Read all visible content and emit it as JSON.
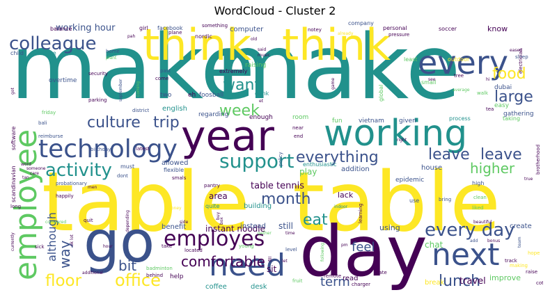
{
  "chart_data": {
    "type": "wordcloud",
    "title": "WordCloud - Cluster 2",
    "palette": [
      "#440154",
      "#3b528b",
      "#21918c",
      "#5ec962",
      "#fde725"
    ],
    "words": [
      {
        "text": "make",
        "size": 1.0,
        "color": "#21918c"
      },
      {
        "text": "make",
        "size": 1.0,
        "color": "#21918c"
      },
      {
        "text": "table",
        "size": 0.95,
        "color": "#fde725"
      },
      {
        "text": "table",
        "size": 0.95,
        "color": "#fde725"
      },
      {
        "text": "day",
        "size": 0.9,
        "color": "#440154"
      },
      {
        "text": "go",
        "size": 0.8,
        "color": "#3b528b"
      },
      {
        "text": "think",
        "size": 0.6,
        "color": "#fde725"
      },
      {
        "text": "think",
        "size": 0.6,
        "color": "#fde725"
      },
      {
        "text": "year",
        "size": 0.6,
        "color": "#440154"
      },
      {
        "text": "working",
        "size": 0.55,
        "color": "#21918c"
      },
      {
        "text": "every",
        "size": 0.5,
        "color": "#3b528b"
      },
      {
        "text": "employee",
        "size": 0.45,
        "color": "#5ec962"
      },
      {
        "text": "need",
        "size": 0.45,
        "color": "#3b528b"
      },
      {
        "text": "next",
        "size": 0.45,
        "color": "#3b528b"
      },
      {
        "text": "technology",
        "size": 0.4,
        "color": "#3b528b"
      },
      {
        "text": "employes",
        "size": 0.35,
        "color": "#440154"
      },
      {
        "text": "colleague",
        "size": 0.33,
        "color": "#3b528b"
      },
      {
        "text": "activity",
        "size": 0.3,
        "color": "#21918c"
      },
      {
        "text": "support",
        "size": 0.3,
        "color": "#21918c"
      },
      {
        "text": "every day",
        "size": 0.3,
        "color": "#3b528b"
      },
      {
        "text": "culture",
        "size": 0.28,
        "color": "#3b528b"
      },
      {
        "text": "trip",
        "size": 0.28,
        "color": "#3b528b"
      },
      {
        "text": "large",
        "size": 0.28,
        "color": "#3b528b"
      },
      {
        "text": "office",
        "size": 0.28,
        "color": "#fde725"
      },
      {
        "text": "floor",
        "size": 0.27,
        "color": "#fde725"
      },
      {
        "text": "leave",
        "size": 0.26,
        "color": "#3b528b"
      },
      {
        "text": "leave",
        "size": 0.26,
        "color": "#3b528b"
      },
      {
        "text": "lunch",
        "size": 0.26,
        "color": "#3b528b"
      },
      {
        "text": "everything",
        "size": 0.26,
        "color": "#3b528b"
      },
      {
        "text": "week",
        "size": 0.25,
        "color": "#5ec962"
      },
      {
        "text": "want",
        "size": 0.25,
        "color": "#21918c"
      },
      {
        "text": "food",
        "size": 0.25,
        "color": "#fde725"
      },
      {
        "text": "month",
        "size": 0.25,
        "color": "#3b528b"
      },
      {
        "text": "eat",
        "size": 0.25,
        "color": "#21918c"
      },
      {
        "text": "comfortable",
        "size": 0.24,
        "color": "#440154"
      },
      {
        "text": "higher",
        "size": 0.24,
        "color": "#5ec962"
      },
      {
        "text": "way",
        "size": 0.24,
        "color": "#3b528b"
      },
      {
        "text": "bit",
        "size": 0.24,
        "color": "#3b528b"
      },
      {
        "text": "feel",
        "size": 0.22,
        "color": "#3b528b"
      },
      {
        "text": "term",
        "size": 0.22,
        "color": "#3b528b"
      },
      {
        "text": "although",
        "size": 0.2,
        "color": "#3b528b"
      },
      {
        "text": "working hour",
        "size": 0.15,
        "color": "#3b528b"
      },
      {
        "text": "table tennis",
        "size": 0.15,
        "color": "#440154"
      },
      {
        "text": "instant noodle",
        "size": 0.14,
        "color": "#440154"
      },
      {
        "text": "area",
        "size": 0.15,
        "color": "#440154"
      },
      {
        "text": "know",
        "size": 0.14,
        "color": "#440154"
      },
      {
        "text": "still",
        "size": 0.14,
        "color": "#3b528b"
      },
      {
        "text": "using",
        "size": 0.14,
        "color": "#3b528b"
      },
      {
        "text": "travel",
        "size": 0.14,
        "color": "#440154"
      },
      {
        "text": "chat",
        "size": 0.13,
        "color": "#5ec962"
      },
      {
        "text": "play",
        "size": 0.13,
        "color": "#5ec962"
      },
      {
        "text": "lack",
        "size": 0.12,
        "color": "#440154"
      },
      {
        "text": "read",
        "size": 0.12,
        "color": "#440154"
      },
      {
        "text": "sit",
        "size": 0.12,
        "color": "#440154"
      },
      {
        "text": "computer",
        "size": 0.1,
        "color": "#3b528b"
      },
      {
        "text": "english",
        "size": 0.1,
        "color": "#21918c"
      },
      {
        "text": "allowed",
        "size": 0.1,
        "color": "#3b528b"
      },
      {
        "text": "addition",
        "size": 0.1,
        "color": "#3b528b"
      },
      {
        "text": "house",
        "size": 0.1,
        "color": "#3b528b"
      },
      {
        "text": "improve",
        "size": 0.1,
        "color": "#5ec962"
      },
      {
        "text": "create",
        "size": 0.1,
        "color": "#3b528b"
      },
      {
        "text": "break",
        "size": 0.1,
        "color": "#fde725"
      },
      {
        "text": "desk",
        "size": 0.1,
        "color": "#21918c"
      },
      {
        "text": "coffee",
        "size": 0.1,
        "color": "#21918c"
      },
      {
        "text": "benefit",
        "size": 0.1,
        "color": "#3b528b"
      },
      {
        "text": "instead",
        "size": 0.1,
        "color": "#3b528b"
      },
      {
        "text": "help",
        "size": 0.1,
        "color": "#440154"
      },
      {
        "text": "building",
        "size": 0.1,
        "color": "#21918c"
      },
      {
        "text": "enthusiastic",
        "size": 0.08,
        "color": "#21918c"
      },
      {
        "text": "epidemic",
        "size": 0.09,
        "color": "#3b528b"
      },
      {
        "text": "gathering",
        "size": 0.09,
        "color": "#3b528b"
      },
      {
        "text": "process",
        "size": 0.08,
        "color": "#21918c"
      },
      {
        "text": "taking",
        "size": 0.08,
        "color": "#5ec962"
      },
      {
        "text": "easy",
        "size": 0.09,
        "color": "#5ec962"
      },
      {
        "text": "dubai",
        "size": 0.09,
        "color": "#3b528b"
      },
      {
        "text": "fun",
        "size": 0.09,
        "color": "#5ec962"
      },
      {
        "text": "vietnam",
        "size": 0.09,
        "color": "#3b528b"
      },
      {
        "text": "given",
        "size": 0.09,
        "color": "#3b528b"
      },
      {
        "text": "room",
        "size": 0.09,
        "color": "#5ec962"
      },
      {
        "text": "enough",
        "size": 0.09,
        "color": "#440154"
      },
      {
        "text": "regarding",
        "size": 0.09,
        "color": "#3b528b"
      },
      {
        "text": "foosball",
        "size": 0.09,
        "color": "#3b528b"
      },
      {
        "text": "drink",
        "size": 0.09,
        "color": "#21918c"
      },
      {
        "text": "two",
        "size": 0.09,
        "color": "#3b528b"
      },
      {
        "text": "eh",
        "size": 0.09,
        "color": "#440154"
      },
      {
        "text": "raising",
        "size": 0.09,
        "color": "#5ec962"
      },
      {
        "text": "extremely",
        "size": 0.08,
        "color": "#440154"
      },
      {
        "text": "overtime",
        "size": 0.09,
        "color": "#3b528b"
      },
      {
        "text": "service",
        "size": 0.08,
        "color": "#21918c"
      },
      {
        "text": "child",
        "size": 0.08,
        "color": "#3b528b"
      },
      {
        "text": "balance",
        "size": 0.08,
        "color": "#440154"
      },
      {
        "text": "girl",
        "size": 0.08,
        "color": "#440154"
      },
      {
        "text": "facebook",
        "size": 0.08,
        "color": "#3b528b"
      },
      {
        "text": "something",
        "size": 0.07,
        "color": "#440154"
      },
      {
        "text": "nordic",
        "size": 0.08,
        "color": "#440154"
      },
      {
        "text": "plane",
        "size": 0.07,
        "color": "#440154"
      },
      {
        "text": "notey",
        "size": 0.07,
        "color": "#440154"
      },
      {
        "text": "company",
        "size": 0.08,
        "color": "#3b528b"
      },
      {
        "text": "personal",
        "size": 0.08,
        "color": "#440154"
      },
      {
        "text": "soccer",
        "size": 0.08,
        "color": "#440154"
      },
      {
        "text": "outdoor",
        "size": 0.08,
        "color": "#fde725"
      },
      {
        "text": "least",
        "size": 0.08,
        "color": "#5ec962"
      },
      {
        "text": "global",
        "size": 0.08,
        "color": "#5ec962"
      },
      {
        "text": "small",
        "size": 0.08,
        "color": "#5ec962"
      },
      {
        "text": "pressure",
        "size": 0.07,
        "color": "#440154"
      },
      {
        "text": "sleep",
        "size": 0.07,
        "color": "#3b528b"
      },
      {
        "text": "electrician",
        "size": 0.07,
        "color": "#440154"
      },
      {
        "text": "brotherhood",
        "size": 0.07,
        "color": "#440154"
      },
      {
        "text": "tree",
        "size": 0.07,
        "color": "#440154"
      },
      {
        "text": "tea",
        "size": 0.07,
        "color": "#440154"
      },
      {
        "text": "walk",
        "size": 0.07,
        "color": "#5ec962"
      },
      {
        "text": "average",
        "size": 0.06,
        "color": "#5ec962"
      },
      {
        "text": "security",
        "size": 0.07,
        "color": "#440154"
      },
      {
        "text": "parking",
        "size": 0.07,
        "color": "#440154"
      },
      {
        "text": "home",
        "size": 0.07,
        "color": "#3b528b"
      },
      {
        "text": "plant",
        "size": 0.06,
        "color": "#5ec962"
      },
      {
        "text": "past",
        "size": 0.07,
        "color": "#3b528b"
      },
      {
        "text": "come",
        "size": 0.07,
        "color": "#440154"
      },
      {
        "text": "coming",
        "size": 0.06,
        "color": "#5ec962"
      },
      {
        "text": "september",
        "size": 0.06,
        "color": "#3b528b"
      },
      {
        "text": "friday",
        "size": 0.07,
        "color": "#5ec962"
      },
      {
        "text": "bali",
        "size": 0.07,
        "color": "#3b528b"
      },
      {
        "text": "reimburse",
        "size": 0.07,
        "color": "#3b528b"
      },
      {
        "text": "birthday",
        "size": 0.07,
        "color": "#3b528b"
      },
      {
        "text": "district",
        "size": 0.07,
        "color": "#3b528b"
      },
      {
        "text": "latest",
        "size": 0.07,
        "color": "#440154"
      },
      {
        "text": "probationary",
        "size": 0.07,
        "color": "#3b528b"
      },
      {
        "text": "dont",
        "size": 0.07,
        "color": "#3b528b"
      },
      {
        "text": "must",
        "size": 0.08,
        "color": "#3b528b"
      },
      {
        "text": "flexible",
        "size": 0.08,
        "color": "#3b528b"
      },
      {
        "text": "smals",
        "size": 0.07,
        "color": "#440154"
      },
      {
        "text": "pantry",
        "size": 0.07,
        "color": "#440154"
      },
      {
        "text": "quite",
        "size": 0.08,
        "color": "#21918c"
      },
      {
        "text": "policy",
        "size": 0.07,
        "color": "#3b528b"
      },
      {
        "text": "near",
        "size": 0.07,
        "color": "#440154"
      },
      {
        "text": "end",
        "size": 0.07,
        "color": "#440154"
      },
      {
        "text": "right",
        "size": 0.06,
        "color": "#440154"
      },
      {
        "text": "high",
        "size": 0.08,
        "color": "#3b528b"
      },
      {
        "text": "true",
        "size": 0.06,
        "color": "#440154"
      },
      {
        "text": "clean",
        "size": 0.07,
        "color": "#5ec962"
      },
      {
        "text": "liked",
        "size": 0.07,
        "color": "#5ec962"
      },
      {
        "text": "bring",
        "size": 0.07,
        "color": "#3b528b"
      },
      {
        "text": "use",
        "size": 0.08,
        "color": "#3b528b"
      },
      {
        "text": "learning",
        "size": 0.07,
        "color": "#440154"
      },
      {
        "text": "indoor",
        "size": 0.06,
        "color": "#21918c"
      },
      {
        "text": "beautiful",
        "size": 0.06,
        "color": "#440154"
      },
      {
        "text": "add",
        "size": 0.06,
        "color": "#3b528b"
      },
      {
        "text": "bonus",
        "size": 0.06,
        "color": "#440154"
      },
      {
        "text": "team",
        "size": 0.06,
        "color": "#3b528b"
      },
      {
        "text": "hope",
        "size": 0.07,
        "color": "#fde725"
      },
      {
        "text": "track",
        "size": 0.07,
        "color": "#440154"
      },
      {
        "text": "making",
        "size": 0.07,
        "color": "#fde725"
      },
      {
        "text": "raise",
        "size": 0.07,
        "color": "#440154"
      },
      {
        "text": "cot",
        "size": 0.07,
        "color": "#440154"
      },
      {
        "text": "charger",
        "size": 0.07,
        "color": "#440154"
      },
      {
        "text": "hate",
        "size": 0.07,
        "color": "#440154"
      },
      {
        "text": "remote",
        "size": 0.07,
        "color": "#440154"
      },
      {
        "text": "fruit",
        "size": 0.07,
        "color": "#5ec962"
      },
      {
        "text": "following",
        "size": 0.06,
        "color": "#5ec962"
      },
      {
        "text": "pm",
        "size": 0.06,
        "color": "#440154"
      },
      {
        "text": "time",
        "size": 0.06,
        "color": "#440154"
      },
      {
        "text": "fill",
        "size": 0.06,
        "color": "#440154"
      },
      {
        "text": "let",
        "size": 0.06,
        "color": "#440154"
      },
      {
        "text": "level",
        "size": 0.07,
        "color": "#3b528b"
      },
      {
        "text": "young",
        "size": 0.07,
        "color": "#5ec962"
      },
      {
        "text": "located",
        "size": 0.07,
        "color": "#440154"
      },
      {
        "text": "take",
        "size": 0.07,
        "color": "#440154"
      },
      {
        "text": "badminton",
        "size": 0.07,
        "color": "#5ec962"
      },
      {
        "text": "behind",
        "size": 0.07,
        "color": "#440154"
      },
      {
        "text": "hour",
        "size": 0.06,
        "color": "#440154"
      },
      {
        "text": "additional",
        "size": 0.06,
        "color": "#440154"
      },
      {
        "text": "sick",
        "size": 0.07,
        "color": "#440154"
      },
      {
        "text": "ok lot",
        "size": 0.06,
        "color": "#440154"
      },
      {
        "text": "currently",
        "size": 0.06,
        "color": "#440154"
      },
      {
        "text": "compared",
        "size": 0.06,
        "color": "#5ec962"
      },
      {
        "text": "long",
        "size": 0.07,
        "color": "#440154"
      },
      {
        "text": "happily",
        "size": 0.07,
        "color": "#440154"
      },
      {
        "text": "quit",
        "size": 0.07,
        "color": "#440154"
      },
      {
        "text": "men",
        "size": 0.06,
        "color": "#440154"
      },
      {
        "text": "depending",
        "size": 0.06,
        "color": "#440154"
      },
      {
        "text": "money",
        "size": 0.06,
        "color": "#fde725"
      },
      {
        "text": "side",
        "size": 0.06,
        "color": "#440154"
      },
      {
        "text": "box",
        "size": 0.06,
        "color": "#440154"
      },
      {
        "text": "gather",
        "size": 0.06,
        "color": "#5ec962"
      },
      {
        "text": "music",
        "size": 0.06,
        "color": "#440154"
      },
      {
        "text": "said",
        "size": 0.06,
        "color": "#440154"
      },
      {
        "text": "old",
        "size": 0.06,
        "color": "#440154"
      },
      {
        "text": "already",
        "size": 0.06,
        "color": "#fde725"
      },
      {
        "text": "pah",
        "size": 0.06,
        "color": "#440154"
      },
      {
        "text": "eased",
        "size": 0.06,
        "color": "#440154"
      },
      {
        "text": "see",
        "size": 0.06,
        "color": "#440154"
      },
      {
        "text": "game",
        "size": 0.06,
        "color": "#440154"
      },
      {
        "text": "hi",
        "size": 0.06,
        "color": "#440154"
      },
      {
        "text": "got",
        "size": 0.06,
        "color": "#440154"
      },
      {
        "text": "word",
        "size": 0.06,
        "color": "#440154"
      },
      {
        "text": "someone",
        "size": 0.06,
        "color": "#440154"
      },
      {
        "text": "care",
        "size": 0.06,
        "color": "#440154"
      },
      {
        "text": "tan",
        "size": 0.06,
        "color": "#440154"
      },
      {
        "text": "et",
        "size": 0.06,
        "color": "#440154"
      },
      {
        "text": "buy",
        "size": 0.06,
        "color": "#440154"
      },
      {
        "text": "scandinavian",
        "size": 0.07,
        "color": "#440154"
      },
      {
        "text": "software",
        "size": 0.07,
        "color": "#440154"
      }
    ]
  }
}
